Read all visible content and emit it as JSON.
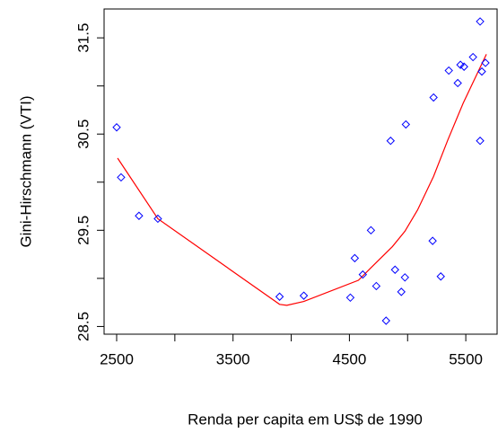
{
  "chart_data": {
    "type": "scatter",
    "xlabel": "Renda per capita em US$ de 1990",
    "ylabel": "Gini-Hirschmann (VTI)",
    "xlim": [
      2392,
      5769
    ],
    "ylim": [
      28.42,
      31.8
    ],
    "xticks": [
      2500,
      3500,
      4500,
      5500
    ],
    "xminor_ticks": [
      3000,
      4000,
      5000
    ],
    "yticks": [
      28.5,
      29.5,
      30.5,
      31.5
    ],
    "yminor_ticks": [
      29,
      30,
      31
    ],
    "point_color": "#0000ff",
    "line_color": "#ff0000",
    "x": [
      2500,
      2538,
      2692,
      2854,
      3900,
      4108,
      4508,
      4546,
      4615,
      4685,
      4731,
      4815,
      4854,
      4892,
      4946,
      4985,
      4977,
      5215,
      5223,
      5285,
      5354,
      5431,
      5454,
      5485,
      5562,
      5623,
      5623,
      5638,
      5669
    ],
    "values": [
      30.57,
      30.05,
      29.65,
      29.62,
      28.81,
      28.82,
      28.8,
      29.21,
      29.04,
      29.5,
      28.92,
      28.56,
      30.43,
      29.09,
      28.86,
      30.6,
      29.01,
      29.39,
      30.88,
      29.02,
      31.16,
      31.03,
      31.22,
      31.2,
      31.3,
      31.67,
      30.43,
      31.15,
      31.24
    ],
    "fit": {
      "x": [
        2508,
        2854,
        3900,
        3962,
        4108,
        4577,
        4685,
        4869,
        4977,
        5085,
        5223,
        5346,
        5477,
        5677
      ],
      "values": [
        30.25,
        29.62,
        28.73,
        28.72,
        28.76,
        28.98,
        29.11,
        29.33,
        29.49,
        29.71,
        30.06,
        30.44,
        30.82,
        31.33
      ]
    }
  }
}
